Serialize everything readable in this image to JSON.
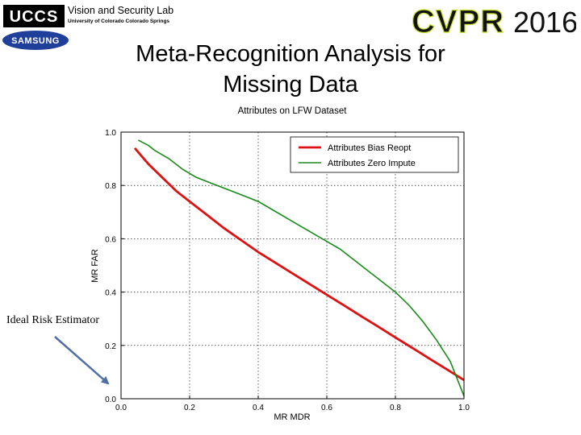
{
  "header": {
    "uccs_logo_text": "UCCS",
    "lab_name": "Vision and Security Lab",
    "lab_sub": "University of Colorado Colorado Springs",
    "samsung_logo_text": "SAMSUNG",
    "cvpr_logo_text": "CVPR",
    "cvpr_year": "2016"
  },
  "slide": {
    "title_line1": "Meta-Recognition Analysis for",
    "title_line2": "Missing Data",
    "annotation": "Ideal Risk Estimator"
  },
  "colors": {
    "bias_reopt": "#dd1111",
    "zero_impute": "#1a8a1a",
    "arrow": "#4f6fa8",
    "cvpr_dark": "#111111",
    "cvpr_accent": "#c9e02b"
  },
  "chart_data": {
    "type": "line",
    "title": "Attributes on LFW Dataset",
    "xlabel": "MR MDR",
    "ylabel": "MR FAR",
    "xlim": [
      0.0,
      1.0
    ],
    "ylim": [
      0.0,
      1.0
    ],
    "xticks": [
      "0.0",
      "0.2",
      "0.4",
      "0.6",
      "0.8",
      "1.0"
    ],
    "yticks": [
      "0.0",
      "0.2",
      "0.4",
      "0.6",
      "0.8",
      "1.0"
    ],
    "grid": true,
    "legend_position": "top-right",
    "series": [
      {
        "name": "Attributes Bias Reopt",
        "color": "#dd1111",
        "x": [
          0.04,
          0.06,
          0.08,
          0.12,
          0.16,
          0.2,
          0.25,
          0.3,
          0.35,
          0.4,
          0.45,
          0.5,
          0.55,
          0.6,
          0.65,
          0.7,
          0.75,
          0.8,
          0.85,
          0.9,
          0.95,
          1.0
        ],
        "y": [
          0.94,
          0.91,
          0.88,
          0.83,
          0.78,
          0.74,
          0.69,
          0.64,
          0.595,
          0.55,
          0.51,
          0.47,
          0.43,
          0.39,
          0.35,
          0.31,
          0.27,
          0.23,
          0.19,
          0.15,
          0.11,
          0.07
        ]
      },
      {
        "name": "Attributes Zero Impute",
        "color": "#1a8a1a",
        "x": [
          0.05,
          0.08,
          0.1,
          0.14,
          0.18,
          0.22,
          0.28,
          0.32,
          0.36,
          0.4,
          0.44,
          0.48,
          0.52,
          0.56,
          0.6,
          0.64,
          0.68,
          0.72,
          0.76,
          0.8,
          0.84,
          0.88,
          0.92,
          0.96,
          1.0
        ],
        "y": [
          0.97,
          0.95,
          0.93,
          0.9,
          0.86,
          0.83,
          0.8,
          0.78,
          0.76,
          0.74,
          0.71,
          0.68,
          0.65,
          0.62,
          0.59,
          0.56,
          0.52,
          0.48,
          0.44,
          0.4,
          0.35,
          0.29,
          0.22,
          0.14,
          0.01
        ]
      }
    ]
  }
}
